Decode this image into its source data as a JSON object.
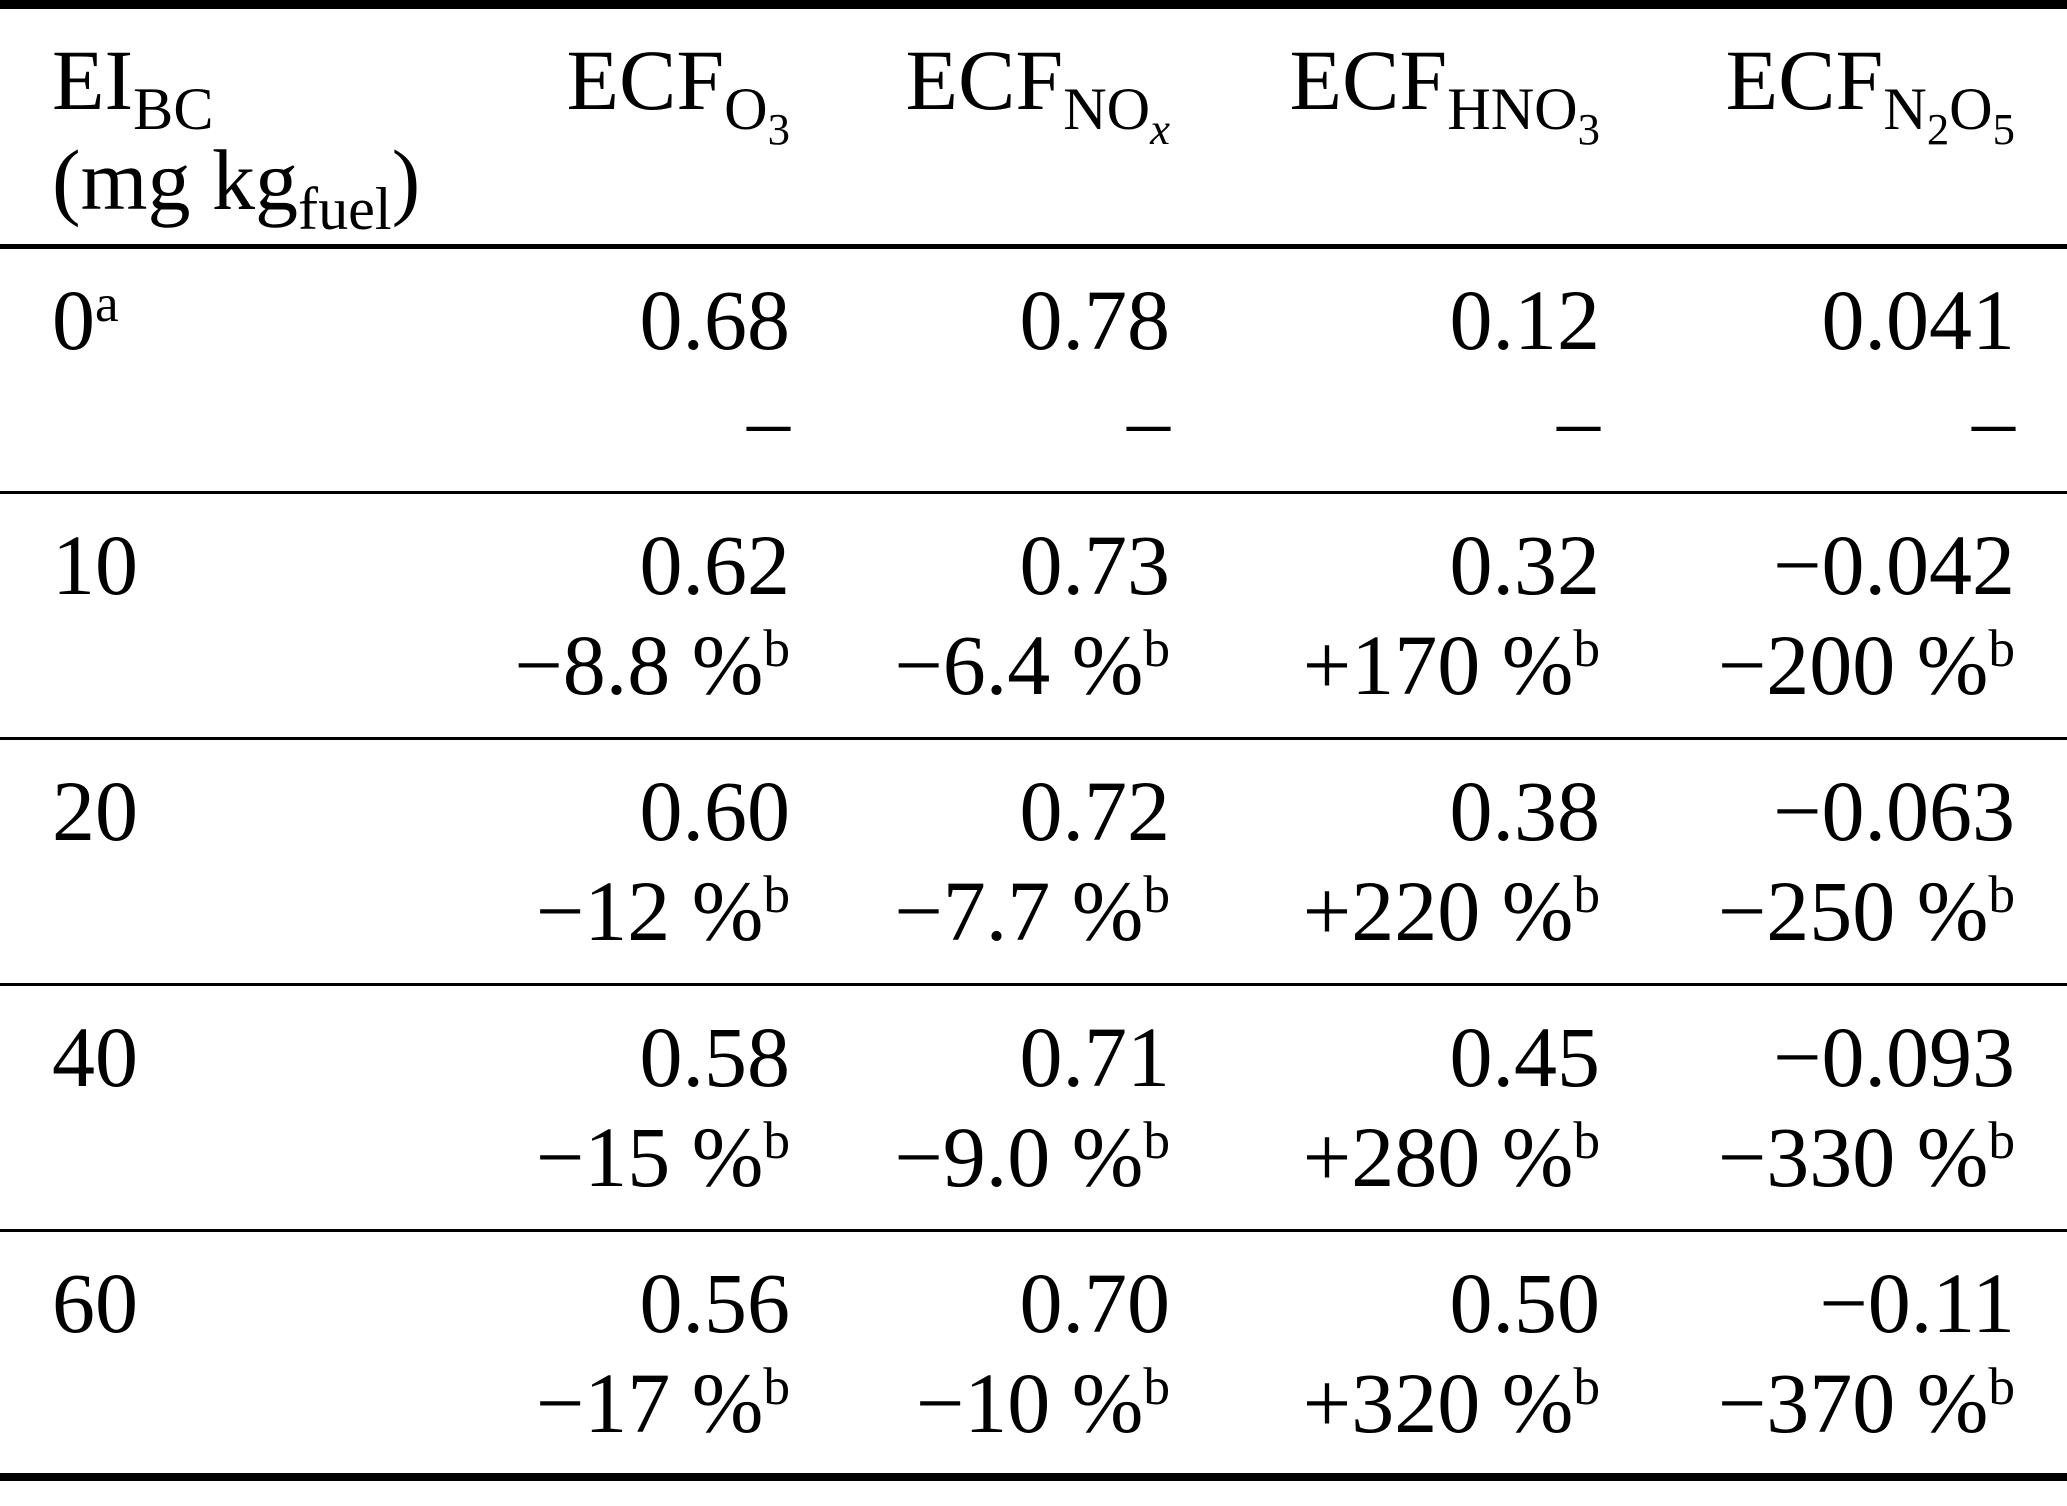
{
  "page": {
    "background_color": "#ffffff",
    "text_color": "#000000",
    "rule_color": "#000000"
  },
  "table": {
    "header": {
      "row_label": {
        "line1": [
          {
            "t": "EI"
          },
          {
            "t": "BC",
            "sub": true
          }
        ],
        "line2": [
          {
            "t": "(mg kg"
          },
          {
            "t": "fuel",
            "sub": true
          },
          {
            "t": ")"
          }
        ]
      },
      "value_cols": [
        {
          "name": "ECF_O3",
          "rich": [
            {
              "t": "ECF"
            },
            {
              "t": "O",
              "sub": true
            },
            {
              "t": "3",
              "sub2": true
            }
          ]
        },
        {
          "name": "ECF_NOx",
          "rich": [
            {
              "t": "ECF"
            },
            {
              "t": "NO",
              "sub": true
            },
            {
              "t": "x",
              "sub2": true,
              "i": true
            }
          ]
        },
        {
          "name": "ECF_HNO3",
          "rich": [
            {
              "t": "ECF"
            },
            {
              "t": "HNO",
              "sub": true
            },
            {
              "t": "3",
              "sub2": true
            }
          ]
        },
        {
          "name": "ECF_N2O5",
          "rich": [
            {
              "t": "ECF"
            },
            {
              "t": "N",
              "sub": true
            },
            {
              "t": "2",
              "sub2": true
            },
            {
              "t": "O",
              "sub": true
            },
            {
              "t": "5",
              "sub2": true
            }
          ]
        }
      ]
    },
    "rows": [
      {
        "ei": [
          {
            "t": "0"
          },
          {
            "t": "a",
            "sup": true
          }
        ],
        "cells": [
          {
            "val": [
              {
                "t": "0.68"
              }
            ],
            "pct": [
              {
                "t": "–"
              }
            ]
          },
          {
            "val": [
              {
                "t": "0.78"
              }
            ],
            "pct": [
              {
                "t": "–"
              }
            ]
          },
          {
            "val": [
              {
                "t": "0.12"
              }
            ],
            "pct": [
              {
                "t": "–"
              }
            ]
          },
          {
            "val": [
              {
                "t": "0.041"
              }
            ],
            "pct": [
              {
                "t": "–"
              }
            ]
          }
        ]
      },
      {
        "ei": [
          {
            "t": "10"
          }
        ],
        "cells": [
          {
            "val": [
              {
                "t": "0.62"
              }
            ],
            "pct": [
              {
                "t": "−8.8 %"
              },
              {
                "t": "b",
                "sup": true
              }
            ]
          },
          {
            "val": [
              {
                "t": "0.73"
              }
            ],
            "pct": [
              {
                "t": "−6.4 %"
              },
              {
                "t": "b",
                "sup": true
              }
            ]
          },
          {
            "val": [
              {
                "t": "0.32"
              }
            ],
            "pct": [
              {
                "t": "+170 %"
              },
              {
                "t": "b",
                "sup": true
              }
            ]
          },
          {
            "val": [
              {
                "t": "−0.042"
              }
            ],
            "pct": [
              {
                "t": "−200 %"
              },
              {
                "t": "b",
                "sup": true
              }
            ]
          }
        ]
      },
      {
        "ei": [
          {
            "t": "20"
          }
        ],
        "cells": [
          {
            "val": [
              {
                "t": "0.60"
              }
            ],
            "pct": [
              {
                "t": "−12 %"
              },
              {
                "t": "b",
                "sup": true
              }
            ]
          },
          {
            "val": [
              {
                "t": "0.72"
              }
            ],
            "pct": [
              {
                "t": "−7.7 %"
              },
              {
                "t": "b",
                "sup": true
              }
            ]
          },
          {
            "val": [
              {
                "t": "0.38"
              }
            ],
            "pct": [
              {
                "t": "+220 %"
              },
              {
                "t": "b",
                "sup": true
              }
            ]
          },
          {
            "val": [
              {
                "t": "−0.063"
              }
            ],
            "pct": [
              {
                "t": "−250 %"
              },
              {
                "t": "b",
                "sup": true
              }
            ]
          }
        ]
      },
      {
        "ei": [
          {
            "t": "40"
          }
        ],
        "cells": [
          {
            "val": [
              {
                "t": "0.58"
              }
            ],
            "pct": [
              {
                "t": "−15 %"
              },
              {
                "t": "b",
                "sup": true
              }
            ]
          },
          {
            "val": [
              {
                "t": "0.71"
              }
            ],
            "pct": [
              {
                "t": "−9.0 %"
              },
              {
                "t": "b",
                "sup": true
              }
            ]
          },
          {
            "val": [
              {
                "t": "0.45"
              }
            ],
            "pct": [
              {
                "t": "+280 %"
              },
              {
                "t": "b",
                "sup": true
              }
            ]
          },
          {
            "val": [
              {
                "t": "−0.093"
              }
            ],
            "pct": [
              {
                "t": "−330 %"
              },
              {
                "t": "b",
                "sup": true
              }
            ]
          }
        ]
      },
      {
        "ei": [
          {
            "t": "60"
          }
        ],
        "cells": [
          {
            "val": [
              {
                "t": "0.56"
              }
            ],
            "pct": [
              {
                "t": "−17 %"
              },
              {
                "t": "b",
                "sup": true
              }
            ]
          },
          {
            "val": [
              {
                "t": "0.70"
              }
            ],
            "pct": [
              {
                "t": "−10 %"
              },
              {
                "t": "b",
                "sup": true
              }
            ]
          },
          {
            "val": [
              {
                "t": "0.50"
              }
            ],
            "pct": [
              {
                "t": "+320 %"
              },
              {
                "t": "b",
                "sup": true
              }
            ]
          },
          {
            "val": [
              {
                "t": "−0.11"
              }
            ],
            "pct": [
              {
                "t": "−370 %"
              },
              {
                "t": "b",
                "sup": true
              }
            ]
          }
        ]
      }
    ]
  },
  "chart_data": {
    "type": "table",
    "columns": [
      "EI_BC (mg kg_fuel)",
      "ECF_O3",
      "ECF_NO_x",
      "ECF_HNO3",
      "ECF_N2O5"
    ],
    "rows": [
      {
        "EI_BC": "0^a",
        "values": [
          0.68,
          0.78,
          0.12,
          0.041
        ],
        "changes": [
          "–",
          "–",
          "–",
          "–"
        ]
      },
      {
        "EI_BC": "10",
        "values": [
          0.62,
          0.73,
          0.32,
          -0.042
        ],
        "changes": [
          "−8.8 %^b",
          "−6.4 %^b",
          "+170 %^b",
          "−200 %^b"
        ]
      },
      {
        "EI_BC": "20",
        "values": [
          0.6,
          0.72,
          0.38,
          -0.063
        ],
        "changes": [
          "−12 %^b",
          "−7.7 %^b",
          "+220 %^b",
          "−250 %^b"
        ]
      },
      {
        "EI_BC": "40",
        "values": [
          0.58,
          0.71,
          0.45,
          -0.093
        ],
        "changes": [
          "−15 %^b",
          "−9.0 %^b",
          "+280 %^b",
          "−330 %^b"
        ]
      },
      {
        "EI_BC": "60",
        "values": [
          0.56,
          0.7,
          0.5,
          -0.11
        ],
        "changes": [
          "−17 %^b",
          "−10 %^b",
          "+320 %^b",
          "−370 %^b"
        ]
      }
    ]
  }
}
